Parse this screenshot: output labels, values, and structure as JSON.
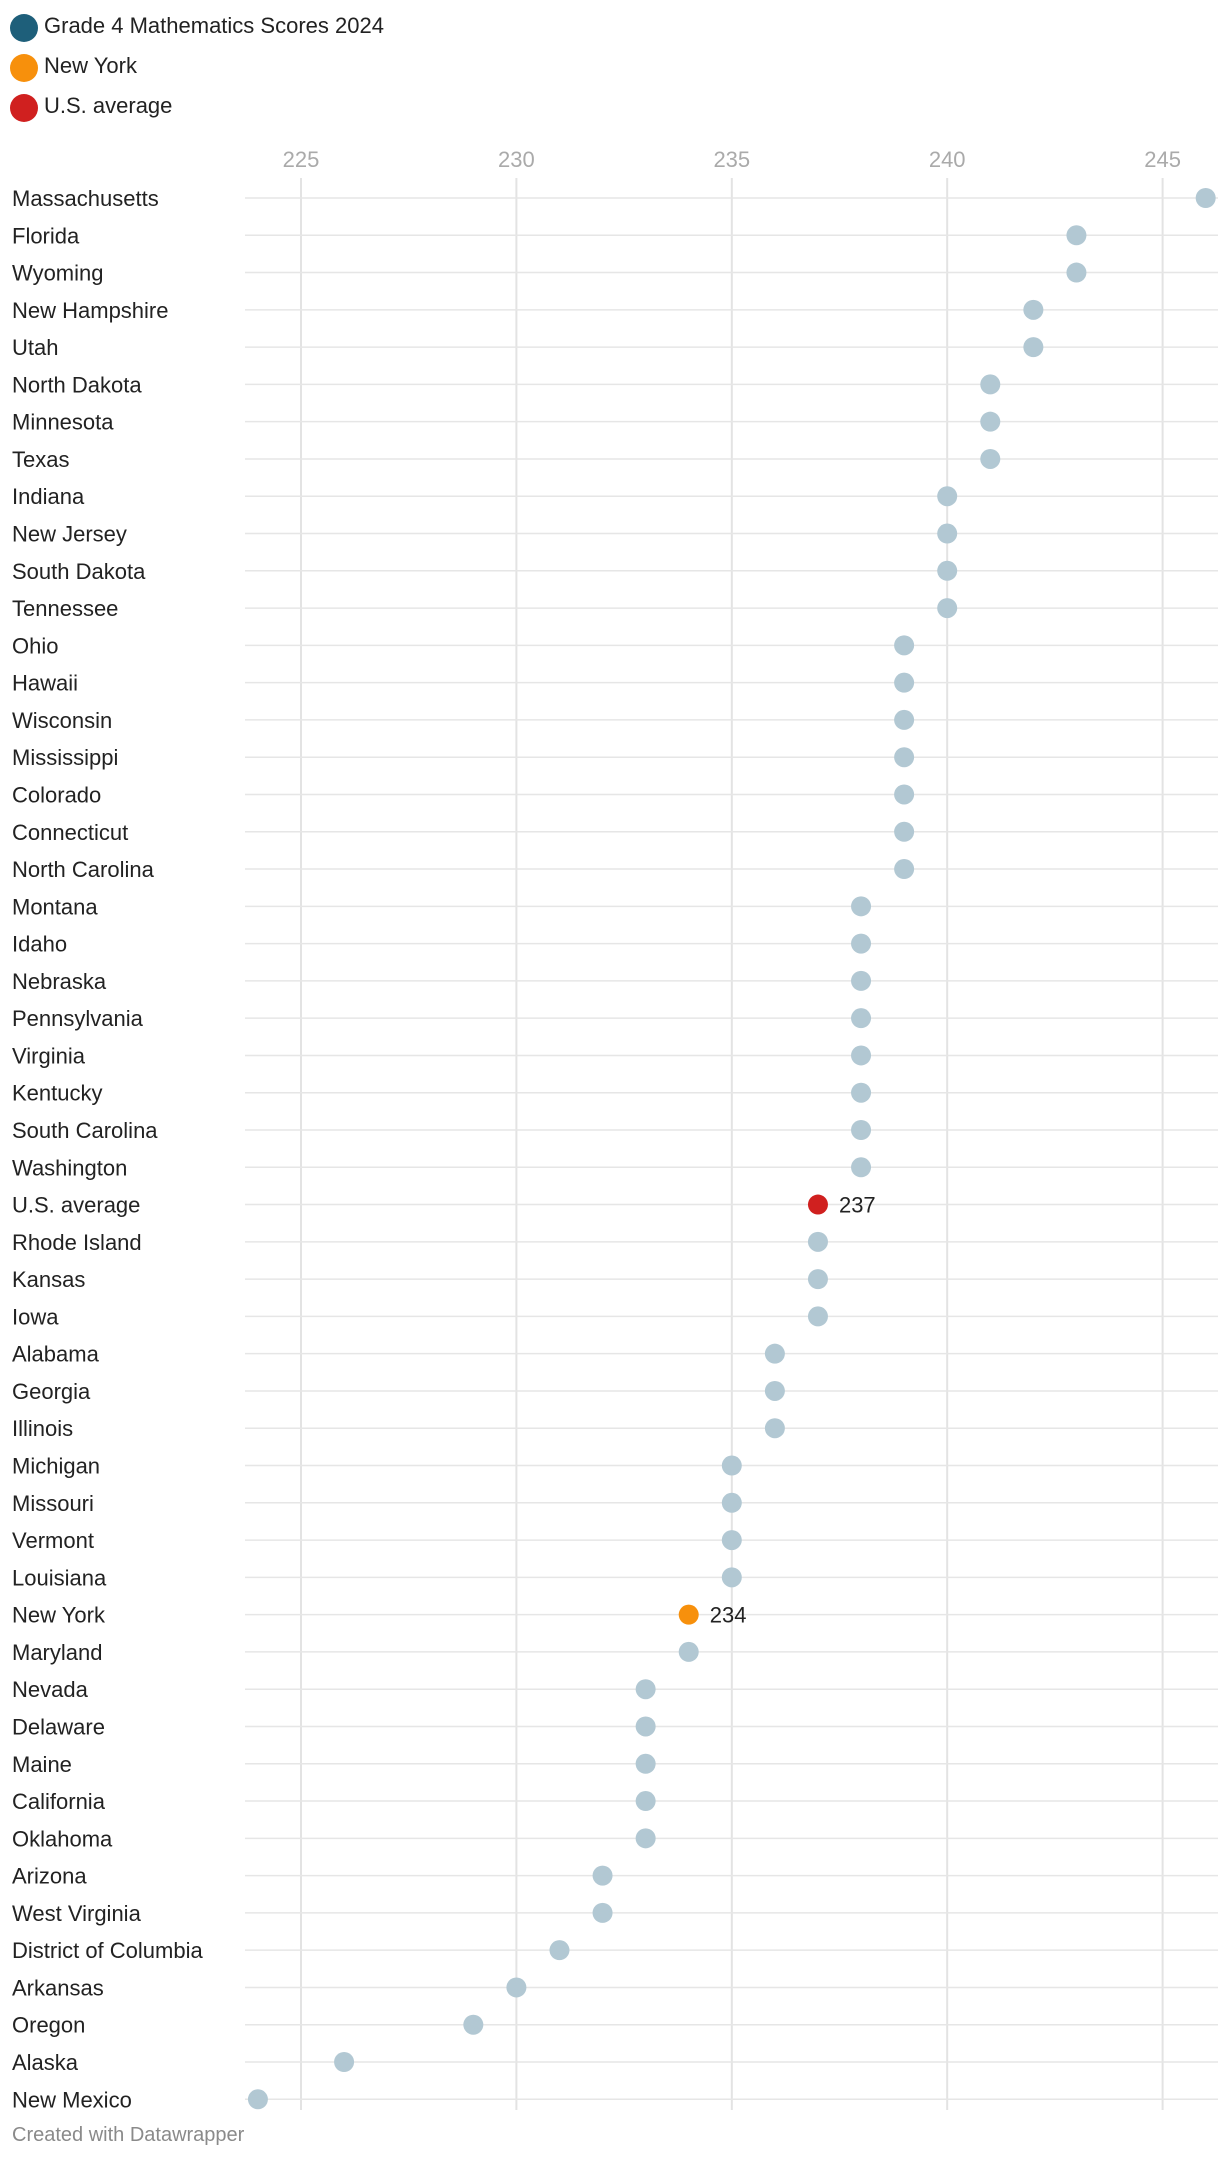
{
  "chart_data": {
    "type": "scatter",
    "title": "",
    "legend": [
      {
        "label": "Grade 4 Mathematics Scores 2024",
        "color": "#1e5f7a"
      },
      {
        "label": "New York",
        "color": "#f7900c"
      },
      {
        "label": "U.S. average",
        "color": "#d0201f"
      }
    ],
    "xlim": [
      223.75,
      246.25
    ],
    "xticks": [
      225,
      230,
      235,
      240,
      245
    ],
    "grid": true,
    "default_point_color": "#b2c8d3",
    "rows": [
      {
        "label": "Massachusetts",
        "value": 246
      },
      {
        "label": "Florida",
        "value": 243
      },
      {
        "label": "Wyoming",
        "value": 243
      },
      {
        "label": "New Hampshire",
        "value": 242
      },
      {
        "label": "Utah",
        "value": 242
      },
      {
        "label": "North Dakota",
        "value": 241
      },
      {
        "label": "Minnesota",
        "value": 241
      },
      {
        "label": "Texas",
        "value": 241
      },
      {
        "label": "Indiana",
        "value": 240
      },
      {
        "label": "New Jersey",
        "value": 240
      },
      {
        "label": "South Dakota",
        "value": 240
      },
      {
        "label": "Tennessee",
        "value": 240
      },
      {
        "label": "Ohio",
        "value": 239
      },
      {
        "label": "Hawaii",
        "value": 239
      },
      {
        "label": "Wisconsin",
        "value": 239
      },
      {
        "label": "Mississippi",
        "value": 239
      },
      {
        "label": "Colorado",
        "value": 239
      },
      {
        "label": "Connecticut",
        "value": 239
      },
      {
        "label": "North Carolina",
        "value": 239
      },
      {
        "label": "Montana",
        "value": 238
      },
      {
        "label": "Idaho",
        "value": 238
      },
      {
        "label": "Nebraska",
        "value": 238
      },
      {
        "label": "Pennsylvania",
        "value": 238
      },
      {
        "label": "Virginia",
        "value": 238
      },
      {
        "label": "Kentucky",
        "value": 238
      },
      {
        "label": "South Carolina",
        "value": 238
      },
      {
        "label": "Washington",
        "value": 238
      },
      {
        "label": "U.S. average",
        "value": 237,
        "color": "#d0201f",
        "data_label": "237"
      },
      {
        "label": "Rhode Island",
        "value": 237
      },
      {
        "label": "Kansas",
        "value": 237
      },
      {
        "label": "Iowa",
        "value": 237
      },
      {
        "label": "Alabama",
        "value": 236
      },
      {
        "label": "Georgia",
        "value": 236
      },
      {
        "label": "Illinois",
        "value": 236
      },
      {
        "label": "Michigan",
        "value": 235
      },
      {
        "label": "Missouri",
        "value": 235
      },
      {
        "label": "Vermont",
        "value": 235
      },
      {
        "label": "Louisiana",
        "value": 235
      },
      {
        "label": "New York",
        "value": 234,
        "color": "#f7900c",
        "data_label": "234"
      },
      {
        "label": "Maryland",
        "value": 234
      },
      {
        "label": "Nevada",
        "value": 233
      },
      {
        "label": "Delaware",
        "value": 233
      },
      {
        "label": "Maine",
        "value": 233
      },
      {
        "label": "California",
        "value": 233
      },
      {
        "label": "Oklahoma",
        "value": 233
      },
      {
        "label": "Arizona",
        "value": 232
      },
      {
        "label": "West Virginia",
        "value": 232
      },
      {
        "label": "District of Columbia",
        "value": 231
      },
      {
        "label": "Arkansas",
        "value": 230
      },
      {
        "label": "Oregon",
        "value": 229
      },
      {
        "label": "Alaska",
        "value": 226
      },
      {
        "label": "New Mexico",
        "value": 224
      }
    ]
  },
  "footer": {
    "credit": "Created with Datawrapper"
  }
}
